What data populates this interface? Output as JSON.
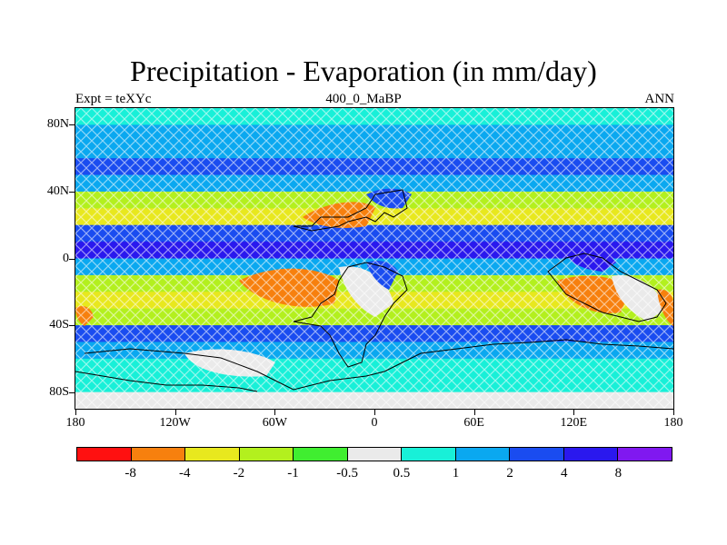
{
  "title": "Precipitation - Evaporation (in mm/day)",
  "left_label": "Expt = teXYc",
  "center_label": "400_0_MaBP",
  "right_label": "ANN",
  "lat_labels": [
    "80N",
    "40N",
    "0",
    "40S",
    "80S"
  ],
  "lat_values": [
    80,
    40,
    0,
    -40,
    -80
  ],
  "lon_labels": [
    "180",
    "120W",
    "60W",
    "0",
    "60E",
    "120E",
    "180"
  ],
  "lon_values": [
    -180,
    -120,
    -60,
    0,
    60,
    120,
    180
  ],
  "legend": {
    "labels": [
      "-8",
      "-4",
      "-2",
      "-1",
      "-0.5",
      "0.5",
      "1",
      "2",
      "4",
      "8"
    ],
    "colors": [
      "#ff1010",
      "#f7800e",
      "#e8e81e",
      "#b3f01e",
      "#40ee30",
      "#eaeaea",
      "#18f0d8",
      "#0aa8f0",
      "#1a4cf0",
      "#2a18ee",
      "#8018f0"
    ]
  },
  "chart_data": {
    "type": "heatmap",
    "title": "Precipitation - Evaporation (in mm/day)",
    "xlabel": "",
    "ylabel": "",
    "xlim": [
      -180,
      180
    ],
    "ylim": [
      -90,
      90
    ],
    "lat_band_classes": [
      {
        "lat": 85,
        "class": 6
      },
      {
        "lat": 75,
        "class": 7
      },
      {
        "lat": 65,
        "class": 7
      },
      {
        "lat": 55,
        "class": 8
      },
      {
        "lat": 45,
        "class": 7
      },
      {
        "lat": 35,
        "class": 3
      },
      {
        "lat": 25,
        "class": 2
      },
      {
        "lat": 15,
        "class": 8
      },
      {
        "lat": 5,
        "class": 9
      },
      {
        "lat": -5,
        "class": 7
      },
      {
        "lat": -15,
        "class": 3
      },
      {
        "lat": -25,
        "class": 2
      },
      {
        "lat": -35,
        "class": 3
      },
      {
        "lat": -45,
        "class": 8
      },
      {
        "lat": -55,
        "class": 7
      },
      {
        "lat": -65,
        "class": 6
      },
      {
        "lat": -75,
        "class": 6
      },
      {
        "lat": -85,
        "class": 5
      }
    ]
  }
}
